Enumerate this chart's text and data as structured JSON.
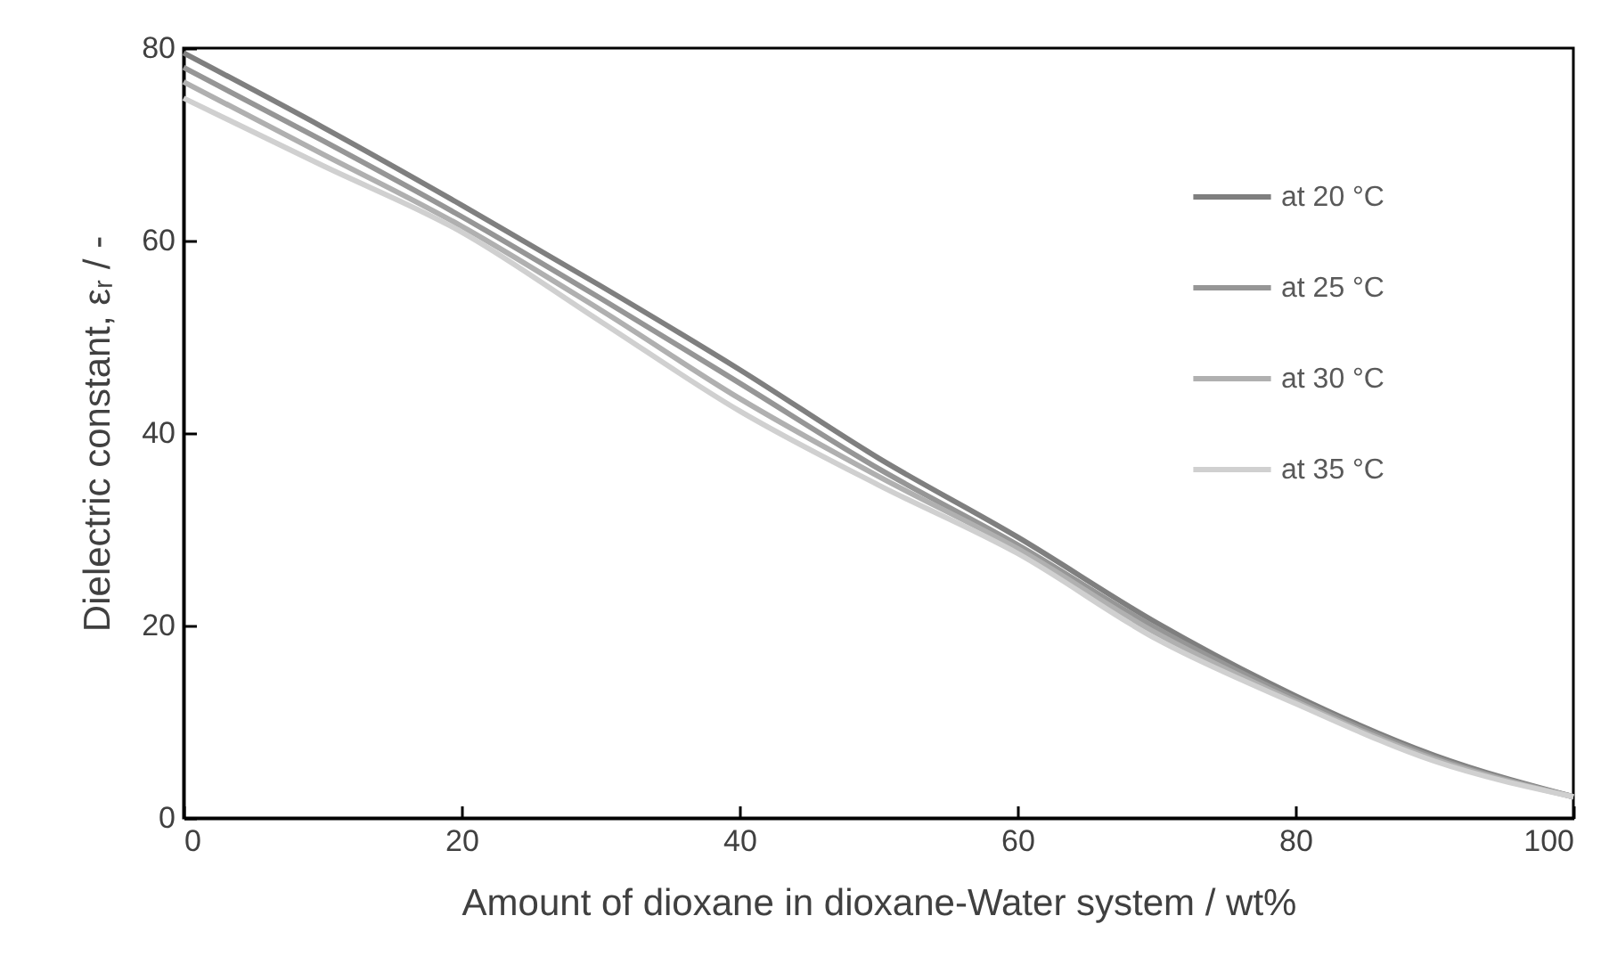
{
  "chart_data": {
    "type": "line",
    "xlabel": "Amount of dioxane in dioxane-Water system / wt%",
    "ylabel": "Dielectric constant, εᵣ / -",
    "x": [
      0,
      10,
      20,
      30,
      40,
      50,
      60,
      70,
      80,
      90,
      100
    ],
    "series": [
      {
        "name": "at 20 °C",
        "color": "#7f7f7f",
        "values": [
          79.5,
          71.8,
          63.7,
          55.3,
          46.6,
          37.4,
          29.2,
          20.3,
          12.7,
          6.5,
          2.2
        ]
      },
      {
        "name": "at 25 °C",
        "color": "#969696",
        "values": [
          78.0,
          70.4,
          62.5,
          54.0,
          45.2,
          36.3,
          28.4,
          19.7,
          12.4,
          6.3,
          2.2
        ]
      },
      {
        "name": "at 30 °C",
        "color": "#b0b0b0",
        "values": [
          76.5,
          69.0,
          61.5,
          52.8,
          43.6,
          35.5,
          28.0,
          19.2,
          12.1,
          6.1,
          2.2
        ]
      },
      {
        "name": "at 35 °C",
        "color": "#d0d0d0",
        "values": [
          74.8,
          67.8,
          60.9,
          51.6,
          42.3,
          34.6,
          27.5,
          18.6,
          11.9,
          5.9,
          2.2
        ]
      }
    ],
    "xlim": [
      0,
      100
    ],
    "xticks": [
      0,
      20,
      40,
      60,
      80,
      100
    ],
    "ylim": [
      0,
      80
    ],
    "yticks": [
      0,
      20,
      40,
      60,
      80
    ],
    "grid": false,
    "legend": "top right",
    "marker": "none",
    "line_style": "solid"
  }
}
